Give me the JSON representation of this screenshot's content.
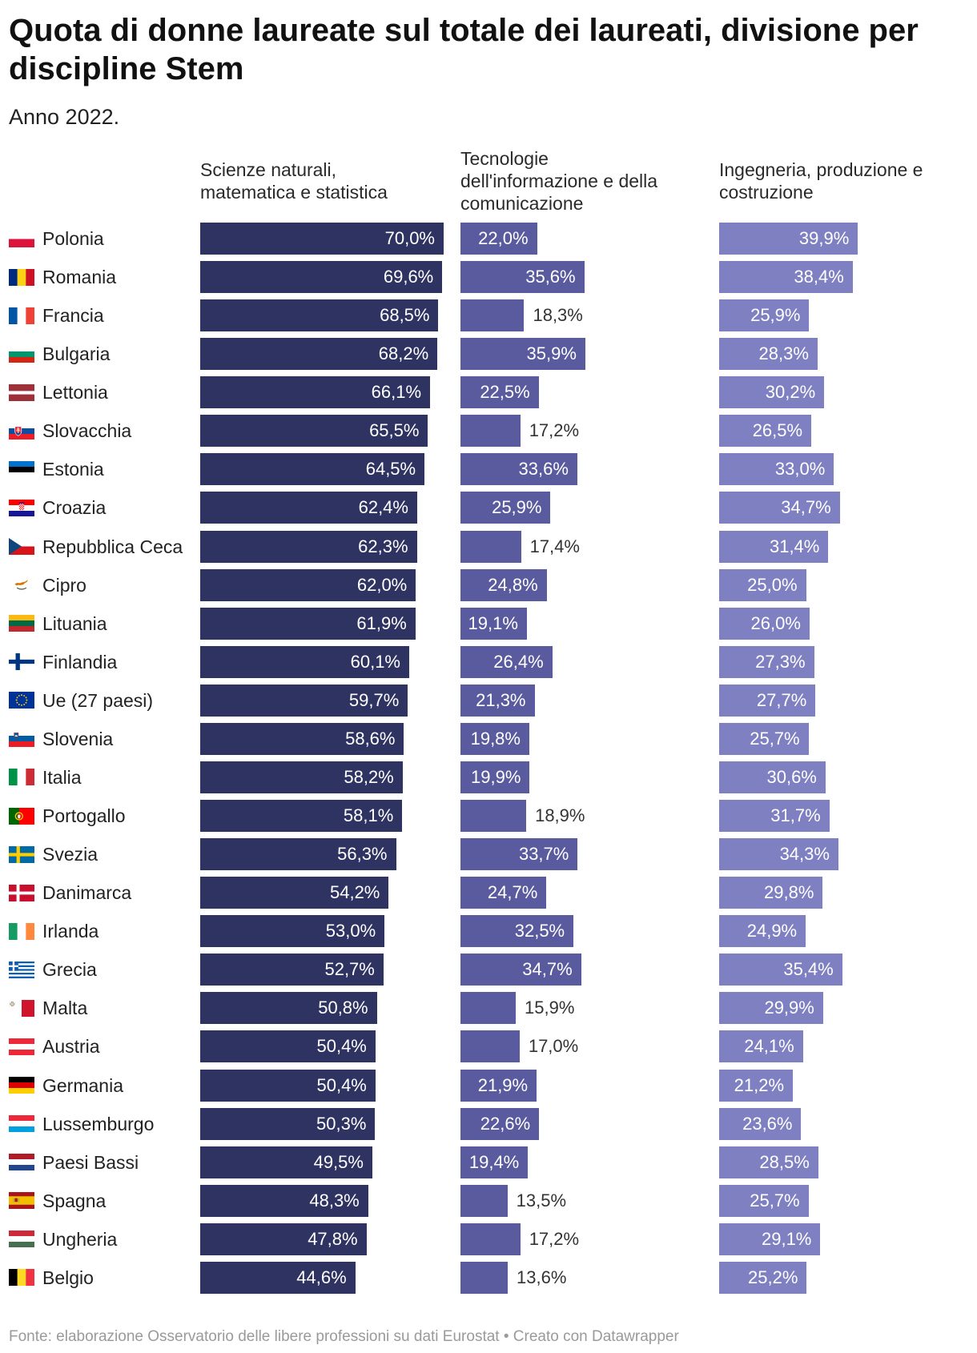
{
  "chart_data": {
    "type": "bar",
    "orientation": "horizontal",
    "title": "Quota di donne laureate sul totale dei laureati, divisione per discipline Stem",
    "subtitle": "Anno 2022.",
    "unit": "%",
    "xlim": [
      0,
      70
    ],
    "categories": [
      "Polonia",
      "Romania",
      "Francia",
      "Bulgaria",
      "Lettonia",
      "Slovacchia",
      "Estonia",
      "Croazia",
      "Repubblica Ceca",
      "Cipro",
      "Lituania",
      "Finlandia",
      "Ue (27 paesi)",
      "Slovenia",
      "Italia",
      "Portogallo",
      "Svezia",
      "Danimarca",
      "Irlanda",
      "Grecia",
      "Malta",
      "Austria",
      "Germania",
      "Lussemburgo",
      "Paesi Bassi",
      "Spagna",
      "Ungheria",
      "Belgio"
    ],
    "category_icons": [
      "flag-poland-icon",
      "flag-romania-icon",
      "flag-france-icon",
      "flag-bulgaria-icon",
      "flag-latvia-icon",
      "flag-slovakia-icon",
      "flag-estonia-icon",
      "flag-croatia-icon",
      "flag-czech-republic-icon",
      "flag-cyprus-icon",
      "flag-lithuania-icon",
      "flag-finland-icon",
      "flag-eu-icon",
      "flag-slovenia-icon",
      "flag-italy-icon",
      "flag-portugal-icon",
      "flag-sweden-icon",
      "flag-denmark-icon",
      "flag-ireland-icon",
      "flag-greece-icon",
      "flag-malta-icon",
      "flag-austria-icon",
      "flag-germany-icon",
      "flag-luxembourg-icon",
      "flag-netherlands-icon",
      "flag-spain-icon",
      "flag-hungary-icon",
      "flag-belgium-icon"
    ],
    "series": [
      {
        "name": "Scienze naturali, matematica e statistica",
        "color": "#2f3362",
        "values": [
          70.0,
          69.6,
          68.5,
          68.2,
          66.1,
          65.5,
          64.5,
          62.4,
          62.3,
          62.0,
          61.9,
          60.1,
          59.7,
          58.6,
          58.2,
          58.1,
          56.3,
          54.2,
          53.0,
          52.7,
          50.8,
          50.4,
          50.4,
          50.3,
          49.5,
          48.3,
          47.8,
          44.6
        ]
      },
      {
        "name": "Tecnologie dell'informazione e della comunicazione",
        "color": "#5a5b9e",
        "values": [
          22.0,
          35.6,
          18.3,
          35.9,
          22.5,
          17.2,
          33.6,
          25.9,
          17.4,
          24.8,
          19.1,
          26.4,
          21.3,
          19.8,
          19.9,
          18.9,
          33.7,
          24.7,
          32.5,
          34.7,
          15.9,
          17.0,
          21.9,
          22.6,
          19.4,
          13.5,
          17.2,
          13.6
        ]
      },
      {
        "name": "Ingegneria, produzione e costruzione",
        "color": "#7f80c2",
        "values": [
          39.9,
          38.4,
          25.9,
          28.3,
          30.2,
          26.5,
          33.0,
          34.7,
          31.4,
          25.0,
          26.0,
          27.3,
          27.7,
          25.7,
          30.6,
          31.7,
          34.3,
          29.8,
          24.9,
          35.4,
          29.9,
          24.1,
          21.2,
          23.6,
          28.5,
          25.7,
          29.1,
          25.2
        ]
      }
    ],
    "label_colors": {
      "inside": "#ffffff",
      "outside": "#333333"
    }
  },
  "footer": {
    "source_label": "Fonte:",
    "source": "elaborazione Osservatorio delle libere professioni su dati Eurostat",
    "separator": "•",
    "credit": "Creato con Datawrapper"
  }
}
